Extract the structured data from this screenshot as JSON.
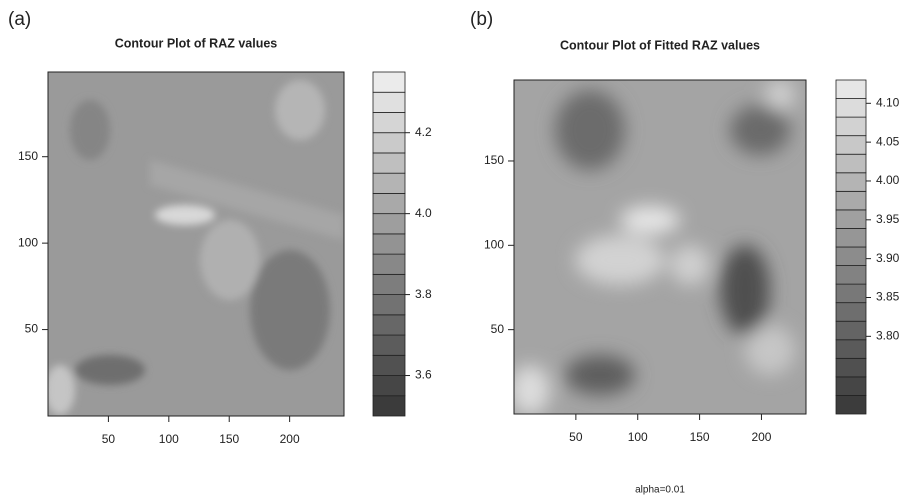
{
  "chart_data": [
    {
      "type": "contour",
      "panel_label": "(a)",
      "title": "Contour Plot of RAZ values",
      "xlim": [
        0,
        245
      ],
      "ylim": [
        0,
        199
      ],
      "xticks": [
        50,
        100,
        150,
        200
      ],
      "yticks": [
        50,
        100,
        150
      ],
      "zlim": [
        3.5,
        4.35
      ],
      "zticks": [
        3.6,
        3.8,
        {
          "value": 4,
          "label": "4.0"
        },
        4.2
      ],
      "colors": [
        "#3b3b3b",
        "#464646",
        "#515151",
        "#5c5c5c",
        "#676767",
        "#727272",
        "#7d7d7d",
        "#888888",
        "#939393",
        "#9e9e9e",
        "#a9a9a9",
        "#b4b4b4",
        "#bfbfbf",
        "#cacaca",
        "#d5d5d5",
        "#e0e0e0",
        "#ebebeb"
      ]
    },
    {
      "type": "contour",
      "panel_label": "(b)",
      "title": "Contour Plot of Fitted RAZ values",
      "annotation": "alpha=0.01",
      "xlim": [
        0,
        236
      ],
      "ylim": [
        0,
        198
      ],
      "xticks": [
        50,
        100,
        150,
        200
      ],
      "yticks": [
        50,
        100,
        150
      ],
      "zlim": [
        3.7,
        4.13
      ],
      "zticks": [
        {
          "value": 3.8,
          "label": "3.80"
        },
        3.85,
        {
          "value": 3.9,
          "label": "3.90"
        },
        3.95,
        {
          "value": 4,
          "label": "4.00"
        },
        4.05,
        {
          "value": 4.1,
          "label": "4.10"
        }
      ],
      "colors": [
        "#3c3c3c",
        "#464646",
        "#505050",
        "#5a5a5a",
        "#646464",
        "#6e6e6e",
        "#787878",
        "#828282",
        "#8c8c8c",
        "#969696",
        "#a0a0a0",
        "#aaaaaa",
        "#b4b4b4",
        "#bebebe",
        "#c8c8c8",
        "#d2d2d2",
        "#dcdcdc",
        "#e6e6e6"
      ]
    }
  ]
}
